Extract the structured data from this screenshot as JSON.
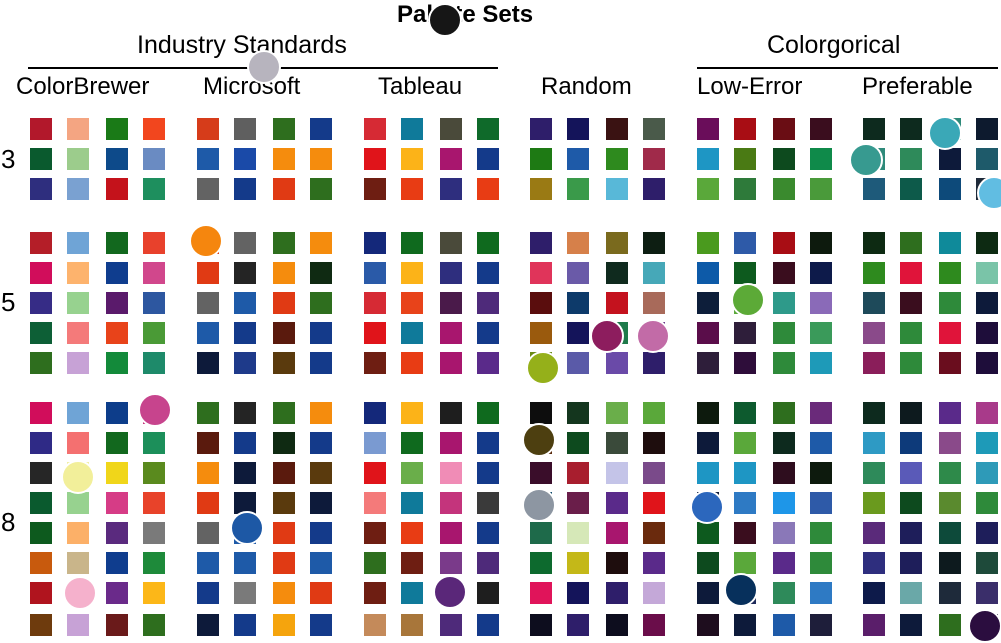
{
  "title": "Palette Sets",
  "groups": [
    {
      "label": "Industry Standards"
    },
    {
      "label": "Colorgorical"
    }
  ],
  "sets": [
    {
      "label": "ColorBrewer"
    },
    {
      "label": "Microsoft"
    },
    {
      "label": "Tableau"
    },
    {
      "label": "Random"
    },
    {
      "label": "Low-Error"
    },
    {
      "label": "Preferable"
    }
  ],
  "sizes": [
    "3",
    "5",
    "8"
  ],
  "palettes": [
    [
      [
        [
          "#b2182b",
          "#f4a582",
          "#1a7a17",
          "#f2461e"
        ],
        [
          "#0a5a2e",
          "#9ccc8c",
          "#0d4a8a",
          "#6a8bc2"
        ],
        [
          "#2e2e7e",
          "#7aa1d1",
          "#c4121b",
          "#1e8f5e"
        ]
      ],
      [
        [
          "#b41e28",
          "#6fa4d6",
          "#12681e",
          "#e8412c"
        ],
        [
          "#d10d5b",
          "#fdb36d",
          "#0f3d8e",
          "#d1478c"
        ],
        [
          "#362c86",
          "#97d28f",
          "#5a1a6b",
          "#2d57a0"
        ],
        [
          "#0d5f36",
          "#f47a7a",
          "#e8431a",
          "#4a9a36"
        ],
        [
          "#2e6e1e",
          "#c7a2d6",
          "#138a3a",
          "#1e8a6a"
        ]
      ],
      [
        [
          "#d10d5b",
          "#6fa4d6",
          "#0d3d8a",
          "#c4347c"
        ],
        [
          "#2f2a86",
          "#f47070",
          "#12681e",
          "#1c8f5a"
        ],
        [
          "#262626",
          "#f0eea0",
          "#f0d61a",
          "#5a8a1e"
        ],
        [
          "#0a5a2e",
          "#97d28f",
          "#d63c86",
          "#e8432a"
        ],
        [
          "#0d5a1e",
          "#fcb068",
          "#5a2a7e",
          "#7a7a7a"
        ],
        [
          "#c85a0d",
          "#c9b58a",
          "#0f3d8e",
          "#1e8a3a"
        ],
        [
          "#b0141e",
          "#f8b6d2",
          "#6a2a8a",
          "#fcb718"
        ],
        [
          "#6e3b0d",
          "#c7a2d6",
          "#6a1a1a",
          "#2e6e1e"
        ]
      ]
    ],
    [
      [
        [
          "#d63c1a",
          "#5f5f5f",
          "#2e6e1e",
          "#143a8a"
        ],
        [
          "#1e5aa8",
          "#1a4aa8",
          "#f58c0d",
          "#f58c0d"
        ],
        [
          "#636363",
          "#143a8a",
          "#e03a14",
          "#2e6e1e"
        ]
      ],
      [
        [
          "#d63c1a",
          "#636363",
          "#2e6e1e",
          "#f58c0d"
        ],
        [
          "#e03a14",
          "#242424",
          "#f58c0d",
          "#0f2a12"
        ],
        [
          "#636363",
          "#1e5aa8",
          "#e03a14",
          "#2e6e1e"
        ],
        [
          "#1e5aa8",
          "#143a8a",
          "#5a1a0d",
          "#143a8a"
        ],
        [
          "#0d1a3a",
          "#1e3a8a",
          "#5a3a0d",
          "#143a8a"
        ]
      ],
      [
        [
          "#2e6e1e",
          "#242424",
          "#2e6e1e",
          "#f58c0d"
        ],
        [
          "#5a1a0d",
          "#143a8a",
          "#0f2a12",
          "#143a8a"
        ],
        [
          "#f58c0d",
          "#0d1a3a",
          "#5a1a0d",
          "#5a3a0d"
        ],
        [
          "#e03a14",
          "#0d1a3a",
          "#5a3a0d",
          "#0d1a3a"
        ],
        [
          "#636363",
          "#1e5aa8",
          "#e03a14",
          "#143a8a"
        ],
        [
          "#1e5aa8",
          "#1e5aa8",
          "#e03a14",
          "#1e5aa8"
        ],
        [
          "#143a8a",
          "#7a7a7a",
          "#f58c0d",
          "#e03a14"
        ],
        [
          "#0d1a3a",
          "#143a8a",
          "#f5a40d",
          "#143a8a"
        ]
      ]
    ],
    [
      [
        [
          "#d62a34",
          "#0f7a9a",
          "#4a4a3a",
          "#0f6a2a"
        ],
        [
          "#e0141a",
          "#fcb318",
          "#a8166e",
          "#143a8a"
        ],
        [
          "#6e1e12",
          "#e83c14",
          "#2e2e7e",
          "#e83c14"
        ]
      ],
      [
        [
          "#14287a",
          "#0f6a1e",
          "#4a4a3a",
          "#0f6a1e"
        ],
        [
          "#2a5aa8",
          "#fcb318",
          "#2e2e7e",
          "#143a8a"
        ],
        [
          "#d62a34",
          "#e8431a",
          "#4a1a4a",
          "#4e2a7a"
        ],
        [
          "#e0141a",
          "#0f7a9a",
          "#a8166e",
          "#143a8a"
        ],
        [
          "#6e1e12",
          "#e83c14",
          "#a8166e",
          "#5a2a8a"
        ]
      ],
      [
        [
          "#14287a",
          "#fcb318",
          "#1e1e1e",
          "#0f6a1e"
        ],
        [
          "#7a9ad1",
          "#0f6a1e",
          "#a8166e",
          "#143a8a"
        ],
        [
          "#e0141a",
          "#6aae4a",
          "#f08cb6",
          "#143a8a"
        ],
        [
          "#f47a7a",
          "#0f7a9a",
          "#c4347c",
          "#3a3a3a"
        ],
        [
          "#6e1e12",
          "#e83c14",
          "#a8166e",
          "#143a8a"
        ],
        [
          "#2e6e1e",
          "#6e1e12",
          "#7a3a8a",
          "#4e2a7a"
        ],
        [
          "#6e1e12",
          "#0f7a9a",
          "#2e2e2e",
          "#1e1e1e"
        ],
        [
          "#c48a5a",
          "#a8763a",
          "#4e2a7a",
          "#143a8a"
        ]
      ]
    ],
    [
      [
        [
          "#2e1e6a",
          "#14145a",
          "#3a1212",
          "#4a5a4a"
        ],
        [
          "#1e7a14",
          "#1e5aa8",
          "#2e8a1e",
          "#a02a4a"
        ],
        [
          "#9a7a14",
          "#3a9a4a",
          "#58b8d8",
          "#2e1e6a"
        ]
      ],
      [
        [
          "#2e1e6a",
          "#d6804a",
          "#7a6a1e",
          "#0d1e12"
        ],
        [
          "#e0345a",
          "#6a5aa8",
          "#0f2a1e",
          "#46a8b8"
        ],
        [
          "#5a0d0d",
          "#0d3a6a",
          "#c4121e",
          "#a86a5a"
        ],
        [
          "#9a5a0d",
          "#14145a",
          "#1e7a4a",
          "#6a3a8a"
        ],
        [
          "#6a8a14",
          "#5a5aa8",
          "#6a4aa8",
          "#2e1e6a"
        ]
      ],
      [
        [
          "#0d0d0d",
          "#14361e",
          "#6aae4a",
          "#5aa83a"
        ],
        [
          "#5a2a0d",
          "#0d4a1e",
          "#3a4a3a",
          "#1e0d0d"
        ],
        [
          "#3a0d2a",
          "#a81e2e",
          "#c4c4e8",
          "#7a4a8a"
        ],
        [
          "#0d4a6a",
          "#6a1e4a",
          "#5a2a8a",
          "#e0141a"
        ],
        [
          "#1e6a4a",
          "#d6e8b8",
          "#a8166e",
          "#6a2a0d"
        ],
        [
          "#0d6a2e",
          "#c4b818",
          "#1e0d0d",
          "#5a2a8a"
        ],
        [
          "#e0145a",
          "#14145a",
          "#2e1e6a",
          "#c4a8d8"
        ],
        [
          "#0d0d1e",
          "#2e1e6a",
          "#0d0d1e",
          "#6a0d4a"
        ]
      ]
    ],
    [
      [
        [
          "#6a0d5a",
          "#a80d14",
          "#6a0d14",
          "#3a0d1e"
        ],
        [
          "#1e96c4",
          "#4a7a14",
          "#0d4a1e",
          "#0f8a4a"
        ],
        [
          "#5aa83a",
          "#2e7a3a",
          "#3a8a2e",
          "#4a9a3a"
        ]
      ],
      [
        [
          "#4a9a1e",
          "#2e5aa8",
          "#a80d14",
          "#0d1a0d"
        ],
        [
          "#0d5aa8",
          "#0d5a1e",
          "#3a0d1e",
          "#0d1a4a"
        ],
        [
          "#0d1e3a",
          "#5aa83a",
          "#2e9a8a",
          "#8a6ab8"
        ],
        [
          "#5a0d4a",
          "#2e1e3a",
          "#2e8a3a",
          "#3a9a5a"
        ],
        [
          "#2e1e3a",
          "#2e0d3a",
          "#2e8a3a",
          "#1e9ab8"
        ]
      ],
      [
        [
          "#0d1a0d",
          "#0d5a2e",
          "#2e6e1e",
          "#6a2a7a"
        ],
        [
          "#0d1a3a",
          "#5aa83a",
          "#0d2a1e",
          "#1e5aa8"
        ],
        [
          "#1e96c4",
          "#1e96c4",
          "#2e0d1e",
          "#0d1a0d"
        ],
        [
          "#0d1a3a",
          "#2e7ac4",
          "#1e96e8",
          "#2e5aa8"
        ],
        [
          "#0d5a1e",
          "#3a0d1e",
          "#8a78b8",
          "#2e8a3a"
        ],
        [
          "#0d4a1e",
          "#5aa83a",
          "#5a2a8a",
          "#2e8a3a"
        ],
        [
          "#0d1a3a",
          "#1e2a5a",
          "#2e8a5a",
          "#2e7ac4"
        ],
        [
          "#1e0d1e",
          "#0d1a3a",
          "#1e5aa8",
          "#1e1e3a"
        ]
      ]
    ],
    [
      [
        [
          "#0d2a1e",
          "#0d2a1e",
          "#2e8a7a",
          "#0d1a2e"
        ],
        [
          "#2e8a7a",
          "#2e8a5a",
          "#0d1a3a",
          "#1e5a6a"
        ],
        [
          "#1e5a7a",
          "#0d5a4a",
          "#0d4a7a",
          "#1e2a3a"
        ]
      ],
      [
        [
          "#0d2a12",
          "#2e6e1e",
          "#0f8a9a",
          "#0d2a12"
        ],
        [
          "#2e8a1e",
          "#e0143a",
          "#2e8a1e",
          "#7ac4a8"
        ],
        [
          "#1e4a5a",
          "#3a0d1e",
          "#2e8a3a",
          "#0d1a3a"
        ],
        [
          "#8a4a8a",
          "#2e8a3a",
          "#e0143a",
          "#1e0d3a"
        ],
        [
          "#8a1e5a",
          "#2e8a3a",
          "#6a0d1e",
          "#1e0d3a"
        ]
      ],
      [
        [
          "#0d2a1e",
          "#0d1a1e",
          "#5a2a8a",
          "#a83a8a"
        ],
        [
          "#2e9ac4",
          "#0d3a7a",
          "#8a4a8a",
          "#1e9ab8"
        ],
        [
          "#2e8a5a",
          "#5a5ab8",
          "#2e8a4a",
          "#2e9ab8"
        ],
        [
          "#6a9a1e",
          "#0d4a1e",
          "#5a8a2e",
          "#2e8a3a"
        ],
        [
          "#5a2a7a",
          "#1e1e5a",
          "#0d4a3a",
          "#1e1e5a"
        ],
        [
          "#2e2e7e",
          "#1e1e5a",
          "#0d1a1e",
          "#1e4a3a"
        ],
        [
          "#0d1a4a",
          "#6aa8a8",
          "#1e2a3a",
          "#3a2e6a"
        ],
        [
          "#5a1e6a",
          "#0d1a3a",
          "#2e6e1e",
          "#1e0d3a"
        ]
      ]
    ]
  ],
  "dots": [
    {
      "color": "#b7b4be"
    },
    {
      "color": "#161616"
    },
    {
      "color": "#f5860e"
    },
    {
      "color": "#c7448d"
    },
    {
      "color": "#f2ef9a"
    },
    {
      "color": "#f5b1cc"
    },
    {
      "color": "#1d58a5"
    },
    {
      "color": "#5a2779"
    },
    {
      "color": "#8d1d5e"
    },
    {
      "color": "#c26ba7"
    },
    {
      "color": "#95b01a"
    },
    {
      "color": "#4d3f10"
    },
    {
      "color": "#8d96a2"
    },
    {
      "color": "#5caa37"
    },
    {
      "color": "#2c67bd"
    },
    {
      "color": "#07305c"
    },
    {
      "color": "#379a90"
    },
    {
      "color": "#3aa8b7"
    },
    {
      "color": "#61bde2"
    },
    {
      "color": "#2b0d3f"
    }
  ]
}
